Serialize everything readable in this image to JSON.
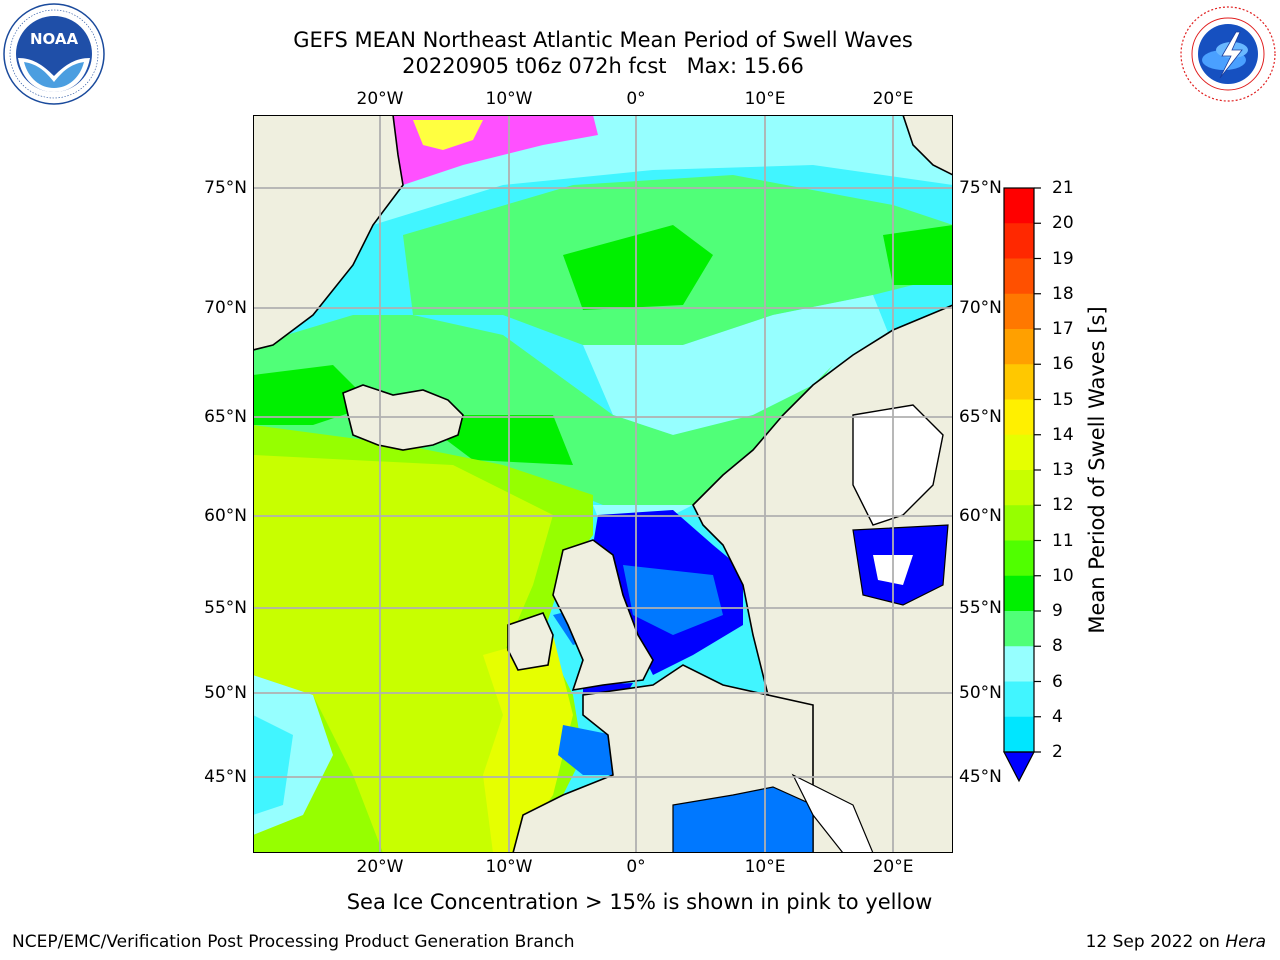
{
  "header": {
    "title_line1": "GEFS MEAN Northeast Atlantic Mean Period of Swell Waves",
    "title_line2": "20220905 t06z 072h fcst   Max: 15.66"
  },
  "logos": {
    "left": {
      "name": "NOAA",
      "ring_text": "NATIONAL OCEANIC AND ATMOSPHERIC ADMINISTRATION",
      "bottom_text": "U.S. DEPARTMENT OF COMMERCE"
    },
    "right": {
      "name": "National Weather Service",
      "ring_text": "NATIONAL WEATHER SERVICE"
    }
  },
  "map": {
    "lon_ticks": [
      "20°W",
      "10°W",
      "0°",
      "10°E",
      "20°E"
    ],
    "lat_ticks": [
      "75°N",
      "70°N",
      "65°N",
      "60°N",
      "55°N",
      "50°N",
      "45°N"
    ],
    "land_color": "#efefdf",
    "gridline_color": "#b0b0b0"
  },
  "colorbar": {
    "label": "Mean Period of Swell Waves [s]",
    "ticks": [
      "21",
      "20",
      "19",
      "18",
      "17",
      "16",
      "15",
      "14",
      "13",
      "12",
      "11",
      "10",
      "9",
      "8",
      "6",
      "4",
      "2"
    ],
    "colors": [
      "#ff0000",
      "#ff2800",
      "#ff5000",
      "#ff7800",
      "#ffa000",
      "#ffc800",
      "#fff000",
      "#e6ff00",
      "#c8ff00",
      "#96ff00",
      "#50ff00",
      "#00f000",
      "#50ff78",
      "#96ffff",
      "#41f5ff",
      "#00e6ff",
      "#0078ff",
      "#0000ff"
    ],
    "extend": "min"
  },
  "notes": {
    "sea_ice": "Sea Ice Concentration > 15% is shown in pink to yellow"
  },
  "footer": {
    "left": "NCEP/EMC/Verification Post Processing Product Generation Branch",
    "right_prefix": "12 Sep 2022 on ",
    "right_host": "Hera"
  }
}
